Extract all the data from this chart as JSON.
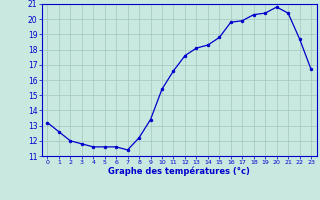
{
  "hours": [
    0,
    1,
    2,
    3,
    4,
    5,
    6,
    7,
    8,
    9,
    10,
    11,
    12,
    13,
    14,
    15,
    16,
    17,
    18,
    19,
    20,
    21,
    22,
    23
  ],
  "temps": [
    13.2,
    12.6,
    12.0,
    11.8,
    11.6,
    11.6,
    11.6,
    11.4,
    12.2,
    13.4,
    15.4,
    16.6,
    17.6,
    18.1,
    18.3,
    18.8,
    19.8,
    19.9,
    20.3,
    20.4,
    20.8,
    20.4,
    18.7,
    16.7
  ],
  "ylim": [
    11,
    21
  ],
  "xlim": [
    -0.5,
    23.5
  ],
  "yticks": [
    11,
    12,
    13,
    14,
    15,
    16,
    17,
    18,
    19,
    20,
    21
  ],
  "xticks": [
    0,
    1,
    2,
    3,
    4,
    5,
    6,
    7,
    8,
    9,
    10,
    11,
    12,
    13,
    14,
    15,
    16,
    17,
    18,
    19,
    20,
    21,
    22,
    23
  ],
  "line_color": "#0000cc",
  "marker_color": "#0000cc",
  "bg_color": "#c8e8e0",
  "grid_color": "#a0c8be",
  "xlabel": "Graphe des températures (°c)",
  "xlabel_color": "#0000cc",
  "axis_color": "#0000cc",
  "tick_color": "#0000cc"
}
